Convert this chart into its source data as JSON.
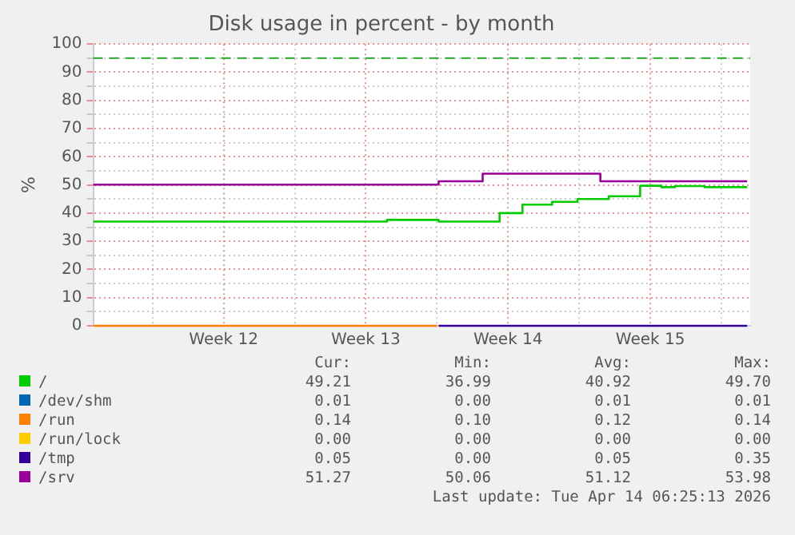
{
  "chart_data": {
    "type": "step",
    "title": "Disk usage in percent - by month",
    "ylabel": "%",
    "xlim": [
      "2026-03-13T02:00",
      "2026-04-14T10:00"
    ],
    "ylim": [
      0,
      100
    ],
    "xticks": [
      {
        "value": "2026-03-16",
        "label": null
      },
      {
        "value": "2026-03-19T12:00",
        "label": "Week 12"
      },
      {
        "value": "2026-03-23",
        "label": null
      },
      {
        "value": "2026-03-26T12:00",
        "label": "Week 13"
      },
      {
        "value": "2026-03-30",
        "label": null
      },
      {
        "value": "2026-04-02T12:00",
        "label": "Week 14"
      },
      {
        "value": "2026-04-06",
        "label": null
      },
      {
        "value": "2026-04-09T12:00",
        "label": "Week 15"
      },
      {
        "value": "2026-04-13",
        "label": null
      }
    ],
    "yticks": [
      0,
      {
        "value": 5,
        "label": null
      },
      10,
      {
        "value": 15,
        "label": null
      },
      20,
      {
        "value": 25,
        "label": null
      },
      30,
      {
        "value": 35,
        "label": null
      },
      40,
      {
        "value": 45,
        "label": null
      },
      50,
      {
        "value": 55,
        "label": null
      },
      60,
      {
        "value": 65,
        "label": null
      },
      70,
      {
        "value": 75,
        "label": null
      },
      80,
      {
        "value": 85,
        "label": null
      },
      90,
      {
        "value": 95,
        "label": null
      },
      100
    ],
    "grid": true,
    "legend": "bottom",
    "ref_lines": [
      {
        "axis": "y",
        "value": 95,
        "color": "#22aa22",
        "line_style": "dashed"
      }
    ],
    "series": [
      {
        "name": "/",
        "color": "#00cc00",
        "x": [
          "2026-03-13T02:00",
          "2026-03-27T13:00",
          "2026-03-30T02:00",
          "2026-04-02T02:00",
          "2026-04-03T05:00",
          "2026-04-04T16:00",
          "2026-04-05T22:00",
          "2026-04-07T11:00",
          "2026-04-09T00:00",
          "2026-04-10T01:00",
          "2026-04-10T17:00",
          "2026-04-12T04:00",
          "2026-04-14T06:25"
        ],
        "values": [
          37,
          37.6,
          37,
          40,
          43,
          44,
          45,
          46,
          49.7,
          49.2,
          49.6,
          49.2,
          49.2
        ]
      },
      {
        "name": "/dev/shm",
        "color": "#0066b3"
      },
      {
        "name": "/run",
        "color": "#ff8000",
        "x": [
          "2026-03-13T02:00",
          "2026-03-30T00:00"
        ],
        "values": [
          0,
          0
        ]
      },
      {
        "name": "/run/lock",
        "color": "#ffcc00"
      },
      {
        "name": "/tmp",
        "color": "#330099",
        "x": [
          "2026-03-30T02:00",
          "2026-04-14T06:25"
        ],
        "values": [
          0,
          0
        ]
      },
      {
        "name": "/srv",
        "color": "#990099",
        "x": [
          "2026-03-13T02:00",
          "2026-03-30T02:00",
          "2026-04-01T06:00",
          "2026-04-07T01:00",
          "2026-04-14T06:25"
        ],
        "values": [
          50.1,
          51.3,
          54.0,
          51.3,
          51.3
        ]
      }
    ],
    "annotations": [
      "Cur:",
      "Min:",
      "Avg:",
      "Max:",
      "49.21",
      "36.99",
      "40.92",
      "49.70",
      "0.01",
      "0.00",
      "0.01",
      "0.01",
      "0.14",
      "0.10",
      "0.12",
      "0.14",
      "0.00",
      "0.00",
      "0.00",
      "0.00",
      "0.05",
      "0.00",
      "0.05",
      "0.35",
      "51.27",
      "50.06",
      "51.12",
      "53.98",
      "Last update: Tue Apr 14 06:25:13 2026"
    ]
  }
}
